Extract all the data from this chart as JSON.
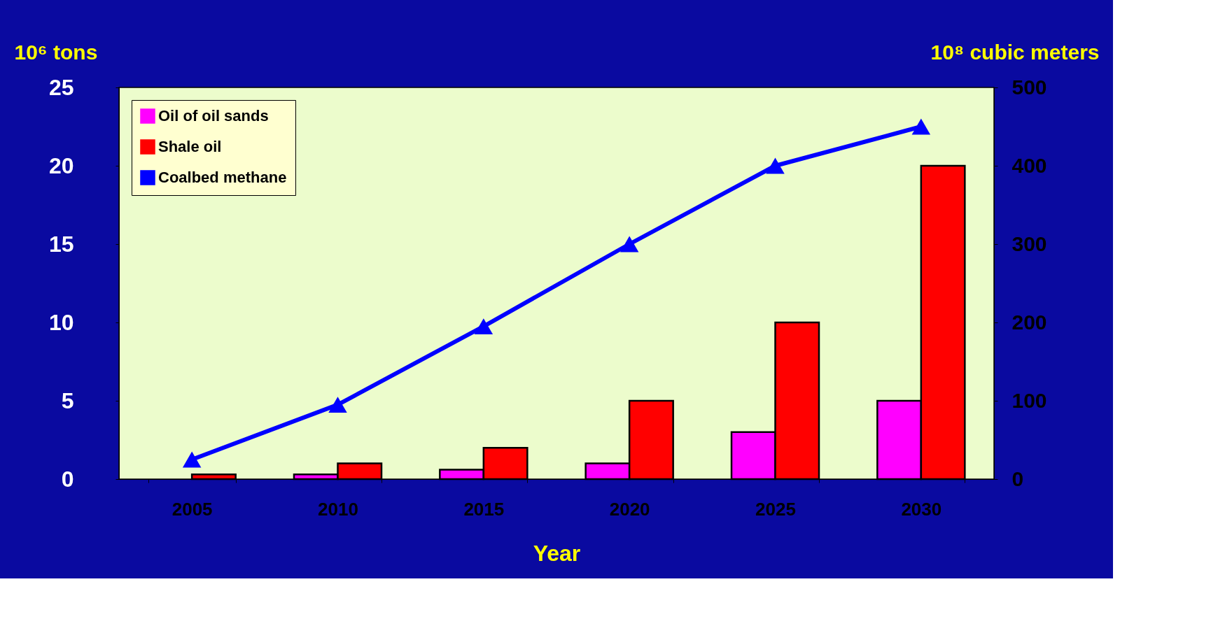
{
  "chart_data": {
    "type": "bar",
    "xlabel": "Year",
    "ylabel": "10⁶ tons",
    "y2label": "10⁸ cubic meters",
    "categories": [
      "2005",
      "2010",
      "2015",
      "2020",
      "2025",
      "2030"
    ],
    "series": [
      {
        "name": "Oil of oil sands",
        "color": "#ff00ff",
        "values": [
          null,
          0.3,
          0.6,
          1,
          3,
          5
        ]
      },
      {
        "name": "Shale oil",
        "color": "#ff0000",
        "values": [
          0.3,
          1,
          2,
          5,
          10,
          20
        ]
      },
      {
        "name": "Coalbed methane",
        "color": "#0000ff",
        "type": "line",
        "axis": "y2",
        "marker": "triangle",
        "values": [
          25,
          95,
          195,
          300,
          400,
          450
        ]
      }
    ],
    "ylim": [
      0,
      25
    ],
    "yticks": [
      0,
      5,
      10,
      15,
      20,
      25
    ],
    "y2lim": [
      0,
      500
    ],
    "y2ticks": [
      0,
      100,
      200,
      300,
      400,
      500
    ],
    "legend": "top left",
    "grid": false
  }
}
